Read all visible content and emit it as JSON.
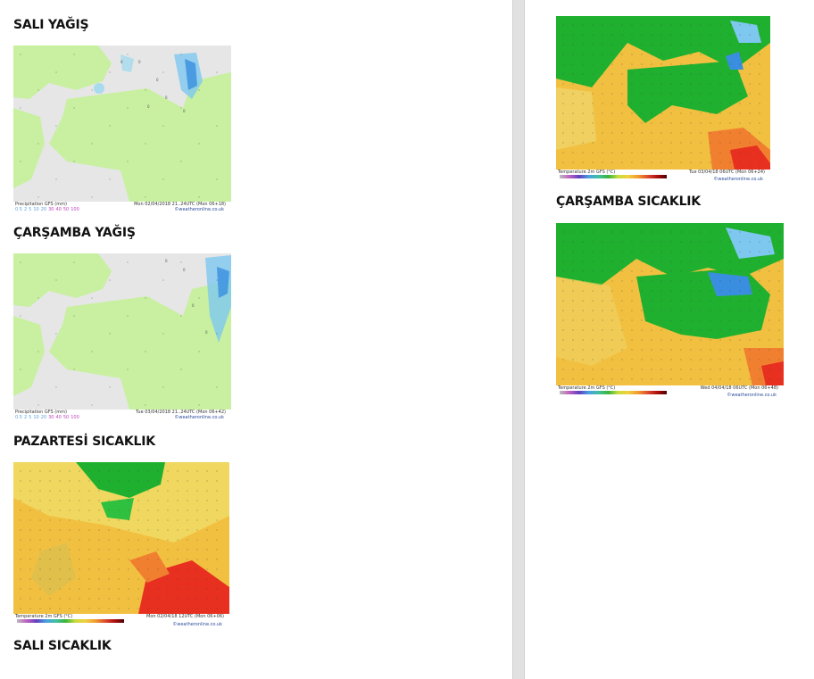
{
  "headings": {
    "sali_yagis": "SALI YAĞIŞ",
    "carsamba_yagis": "ÇARŞAMBA YAĞIŞ",
    "pazartesi_sicaklik": "PAZARTESİ SICAKLIK",
    "sali_sicaklik": "SALI SICAKLIK",
    "carsamba_sicaklik": "ÇARŞAMBA SICAKLIK"
  },
  "maps": {
    "precip_tue": {
      "title": "Precipitation GFS (mm)",
      "time": "Mon 02/04/2018 21..24UTC   (Mon 06+18)",
      "credit": "©weatheronline.co.uk",
      "scale": [
        "0.5",
        "2",
        "5",
        "10",
        "20",
        "30",
        "40",
        "50",
        "100"
      ]
    },
    "precip_wed": {
      "title": "Precipitation GFS (mm)",
      "time": "Tue 03/04/2018 21..24UTC   (Mon 06+42)",
      "credit": "©weatheronline.co.uk",
      "scale": [
        "0.5",
        "2",
        "5",
        "10",
        "20",
        "30",
        "40",
        "50",
        "100"
      ]
    },
    "temp_mon": {
      "title": "Temperature 2m GFS (°C)",
      "time": "Mon 02/04/18 12UTC   (Mon 06+06)",
      "credit": "©weatheronline.co.uk",
      "scale": [
        "-28",
        "-22",
        "-12",
        "0",
        "12",
        "24",
        "36",
        "48"
      ]
    },
    "temp_tue": {
      "title": "Temperature 2m GFS (°C)",
      "time": "Tue 03/04/18 06UTC   (Mon 06+24)",
      "credit": "©weatheronline.co.uk",
      "scale": [
        "-28",
        "-22",
        "-12",
        "0",
        "12",
        "24",
        "36",
        "48"
      ]
    },
    "temp_wed": {
      "title": "Temperature 2m GFS (°C)",
      "time": "Wed 04/04/18 06UTC   (Mon 06+48)",
      "credit": "©weatheronline.co.uk",
      "scale": [
        "-28",
        "-22",
        "-12",
        "0",
        "12",
        "24",
        "36",
        "48"
      ]
    }
  },
  "colors": {
    "land": "#c8f0a0",
    "sea": "#e4e4e4",
    "warm": "#f2c040",
    "cool": "#20b030",
    "hot": "#e83020",
    "rain": "#7ec8f0"
  }
}
